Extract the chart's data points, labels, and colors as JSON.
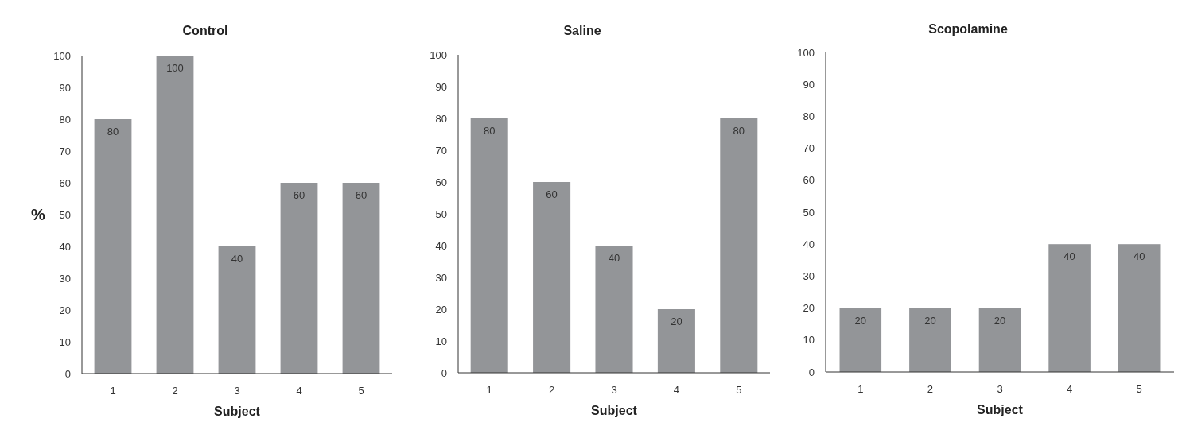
{
  "chart_data": [
    {
      "type": "bar",
      "title": "Control",
      "xlabel": "Subject",
      "ylabel": "%",
      "categories": [
        "1",
        "2",
        "3",
        "4",
        "5"
      ],
      "values": [
        80,
        100,
        40,
        60,
        60
      ],
      "color": "#939598",
      "ylim": [
        0,
        100
      ],
      "yticks": [
        0,
        10,
        20,
        30,
        40,
        50,
        60,
        70,
        80,
        90,
        100
      ],
      "data_labels": true,
      "grid": false
    },
    {
      "type": "bar",
      "title": "Saline",
      "xlabel": "Subject",
      "categories": [
        "1",
        "2",
        "3",
        "4",
        "5"
      ],
      "values": [
        80,
        60,
        40,
        20,
        80
      ],
      "color": "#939598",
      "ylim": [
        0,
        100
      ],
      "yticks": [
        0,
        10,
        20,
        30,
        40,
        50,
        60,
        70,
        80,
        90,
        100
      ],
      "data_labels": true,
      "grid": false
    },
    {
      "type": "bar",
      "title": "Scopolamine",
      "xlabel": "Subject",
      "categories": [
        "1",
        "2",
        "3",
        "4",
        "5"
      ],
      "values": [
        20,
        20,
        20,
        40,
        40
      ],
      "color": "#939598",
      "ylim": [
        0,
        100
      ],
      "yticks": [
        0,
        10,
        20,
        30,
        40,
        50,
        60,
        70,
        80,
        90,
        100
      ],
      "data_labels": true,
      "grid": false
    }
  ]
}
